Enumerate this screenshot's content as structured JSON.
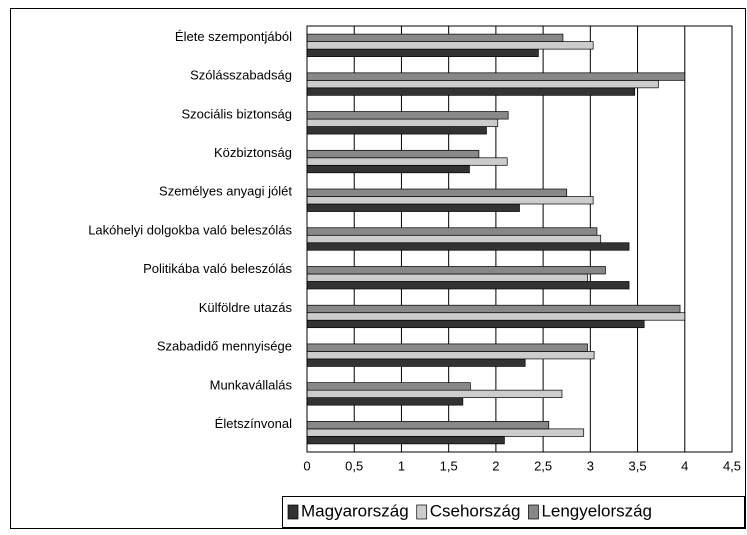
{
  "chart_data": {
    "type": "bar",
    "orientation": "horizontal",
    "categories": [
      "Élete szempontjából",
      "Szólásszabadság",
      "Szociális biztonság",
      "Közbiztonság",
      "Személyes anyagi jólét",
      "Lakóhelyi dolgokba való beleszólás",
      "Politikába való beleszólás",
      "Külföldre utazás",
      "Szabadidő mennyisége",
      "Munkavállalás",
      "Életszínvonal"
    ],
    "series": [
      {
        "name": "Magyarország",
        "color": "#333333",
        "values": [
          2.45,
          3.47,
          1.9,
          1.72,
          2.25,
          3.41,
          3.41,
          3.57,
          2.31,
          1.65,
          2.09
        ]
      },
      {
        "name": "Csehország",
        "color": "#cccccc",
        "values": [
          3.03,
          3.72,
          2.02,
          2.12,
          3.03,
          3.11,
          2.97,
          4.0,
          3.04,
          2.7,
          2.93
        ]
      },
      {
        "name": "Lengyelország",
        "color": "#888888",
        "values": [
          2.71,
          4.0,
          2.13,
          1.82,
          2.75,
          3.07,
          3.16,
          3.95,
          2.97,
          1.73,
          2.56
        ]
      }
    ],
    "xlim": [
      0,
      4.5
    ],
    "xticks": [
      0,
      {
        "value": 0.5,
        "label": "0,5"
      },
      1,
      {
        "value": 1.5,
        "label": "1,5"
      },
      2,
      {
        "value": 2.5,
        "label": "2,5"
      },
      3,
      {
        "value": 3.5,
        "label": "3,5"
      },
      4,
      {
        "value": 4.5,
        "label": "4,5"
      }
    ],
    "grid": true,
    "legend": "bottom"
  }
}
